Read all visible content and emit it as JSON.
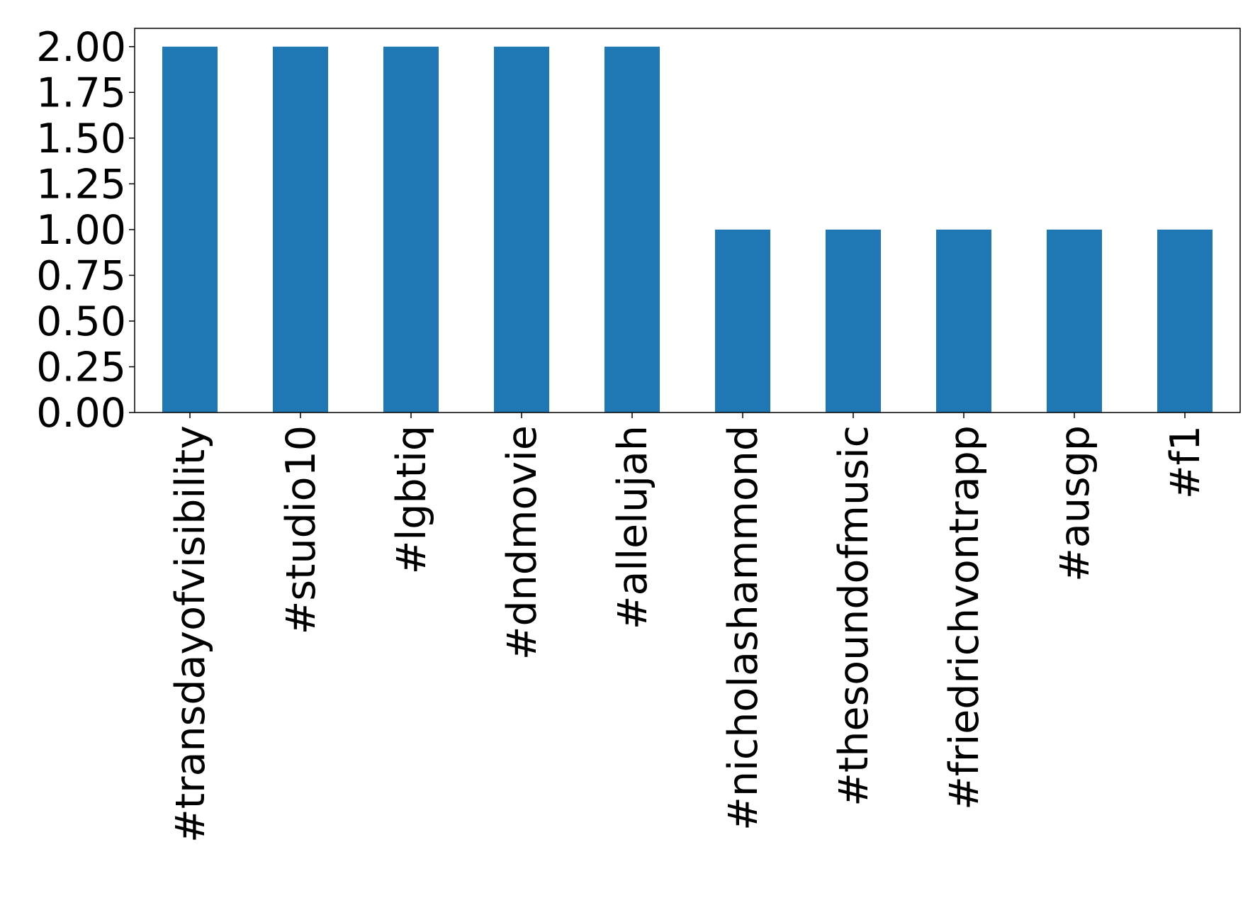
{
  "chart_data": {
    "type": "bar",
    "title": "",
    "xlabel": "",
    "ylabel": "",
    "categories": [
      "#transdayofvisibility",
      "#studio10",
      "#lgbtiq",
      "#dndmovie",
      "#allelujah",
      "#nicholashammond",
      "#thesoundofmusic",
      "#friedrichvontrapp",
      "#ausgp",
      "#f1"
    ],
    "values": [
      2,
      2,
      2,
      2,
      2,
      1,
      1,
      1,
      1,
      1
    ],
    "ylim": [
      0,
      2.1
    ],
    "yticks": [
      "0.00",
      "0.25",
      "0.50",
      "0.75",
      "1.00",
      "1.25",
      "1.50",
      "1.75",
      "2.00"
    ],
    "bar_color": "#1f77b4",
    "grid": false,
    "legend": "none",
    "xtick_rotation": "vertical"
  }
}
